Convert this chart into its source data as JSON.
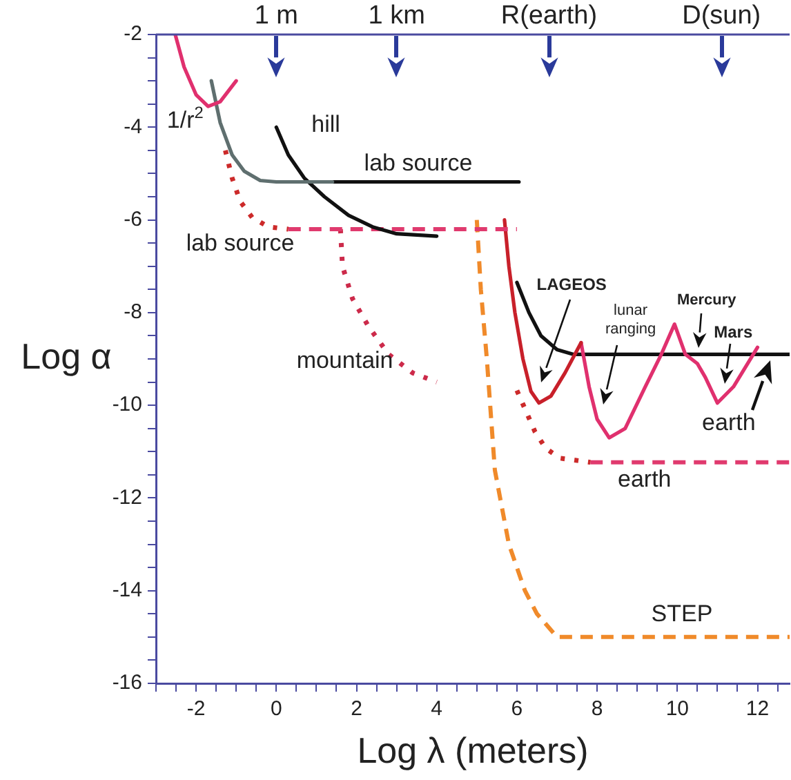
{
  "chart_data": {
    "type": "line",
    "xlabel": "Log λ (meters)",
    "ylabel": "Log α",
    "xlim": [
      -3,
      12.8
    ],
    "ylim": [
      -16,
      -2
    ],
    "xticks": [
      {
        "value": -3,
        "label": null
      },
      {
        "value": -2.5,
        "label": null
      },
      -2,
      {
        "value": -1.5,
        "label": null
      },
      {
        "value": -1,
        "label": null
      },
      {
        "value": -0.5,
        "label": null
      },
      0,
      {
        "value": 0.5,
        "label": null
      },
      {
        "value": 1,
        "label": null
      },
      {
        "value": 1.5,
        "label": null
      },
      2,
      {
        "value": 2.5,
        "label": null
      },
      {
        "value": 3,
        "label": null
      },
      {
        "value": 3.5,
        "label": null
      },
      4,
      {
        "value": 4.5,
        "label": null
      },
      {
        "value": 5,
        "label": null
      },
      {
        "value": 5.5,
        "label": null
      },
      6,
      {
        "value": 6.5,
        "label": null
      },
      {
        "value": 7,
        "label": null
      },
      {
        "value": 7.5,
        "label": null
      },
      8,
      {
        "value": 8.5,
        "label": null
      },
      {
        "value": 9,
        "label": null
      },
      {
        "value": 9.5,
        "label": null
      },
      10,
      {
        "value": 10.5,
        "label": null
      },
      {
        "value": 11,
        "label": null
      },
      {
        "value": 11.5,
        "label": null
      },
      12,
      {
        "value": 12.5,
        "label": null
      }
    ],
    "yticks": [
      -2,
      {
        "value": -2.5,
        "label": null
      },
      {
        "value": -3,
        "label": null
      },
      {
        "value": -3.5,
        "label": null
      },
      -4,
      {
        "value": -4.5,
        "label": null
      },
      {
        "value": -5,
        "label": null
      },
      {
        "value": -5.5,
        "label": null
      },
      -6,
      {
        "value": -6.5,
        "label": null
      },
      {
        "value": -7,
        "label": null
      },
      {
        "value": -7.5,
        "label": null
      },
      -8,
      {
        "value": -8.5,
        "label": null
      },
      {
        "value": -9,
        "label": null
      },
      {
        "value": -9.5,
        "label": null
      },
      -10,
      {
        "value": -10.5,
        "label": null
      },
      {
        "value": -11,
        "label": null
      },
      {
        "value": -11.5,
        "label": null
      },
      -12,
      {
        "value": -12.5,
        "label": null
      },
      {
        "value": -13,
        "label": null
      },
      {
        "value": -13.5,
        "label": null
      },
      -14,
      {
        "value": -14.5,
        "label": null
      },
      {
        "value": -15,
        "label": null
      },
      {
        "value": -15.5,
        "label": null
      },
      -16
    ],
    "grid": false,
    "legend": false,
    "marker": "none",
    "ref_lines": [
      {
        "axis": "x",
        "value": 0,
        "label": "1 m",
        "color": "#2a3a9a"
      },
      {
        "axis": "x",
        "value": 3,
        "label": "1 km",
        "color": "#2a3a9a"
      },
      {
        "axis": "x",
        "value": 6.8,
        "label": "R(earth)",
        "color": "#2a3a9a"
      },
      {
        "axis": "x",
        "value": 11.1,
        "label": "D(sun)",
        "color": "#2a3a9a"
      }
    ],
    "series": [
      {
        "color": "#e0306e",
        "line_style": "solid",
        "x": [
          -2.52,
          -2.3,
          -2.0,
          -1.7,
          -1.4,
          -1.0
        ],
        "values": [
          -2,
          -2.7,
          -3.3,
          -3.55,
          -3.45,
          -3.0
        ]
      },
      {
        "color": "#5f6f6f",
        "line_style": "solid",
        "x": [
          -1.62,
          -1.4,
          -1.1,
          -0.8,
          -0.4,
          0,
          1.4
        ],
        "values": [
          -3.0,
          -3.9,
          -4.6,
          -4.95,
          -5.15,
          -5.18,
          -5.18
        ]
      },
      {
        "color": "#111111",
        "line_style": "solid",
        "x": [
          1.4,
          6.05
        ],
        "values": [
          -5.18,
          -5.18
        ]
      },
      {
        "color": "#111111",
        "line_style": "solid",
        "x": [
          0,
          0.3,
          0.7,
          1.2,
          1.8,
          2.4,
          3,
          4
        ],
        "values": [
          -4,
          -4.6,
          -5.1,
          -5.5,
          -5.9,
          -6.15,
          -6.3,
          -6.35
        ]
      },
      {
        "color": "#cc2a2a",
        "line_style": "dotted",
        "x": [
          -1.27,
          -1.1,
          -0.9,
          -0.6,
          -0.2,
          0.3
        ],
        "values": [
          -4.5,
          -5.1,
          -5.6,
          -5.95,
          -6.15,
          -6.2
        ]
      },
      {
        "color": "#e03a6e",
        "line_style": "dashed",
        "x": [
          0.3,
          6.0
        ],
        "values": [
          -6.2,
          -6.2
        ]
      },
      {
        "color": "#cc2a4a",
        "line_style": "dotted",
        "x": [
          1.6,
          1.65,
          1.9,
          2.3,
          2.8,
          3.4,
          4.0
        ],
        "values": [
          -6.2,
          -7.0,
          -7.7,
          -8.3,
          -8.9,
          -9.3,
          -9.5
        ]
      },
      {
        "color": "#f08a2a",
        "line_style": "dashed",
        "x": [
          5.0,
          5.1,
          5.25,
          5.45,
          5.8,
          6.2,
          6.5,
          7.0,
          12.8
        ],
        "values": [
          -6.0,
          -7.5,
          -9,
          -11.4,
          -13,
          -14,
          -14.5,
          -15,
          -15
        ]
      },
      {
        "color": "#c8202a",
        "line_style": "solid",
        "x": [
          5.69,
          5.8,
          5.95,
          6.15,
          6.35,
          6.55,
          6.85,
          7.2,
          7.6
        ],
        "values": [
          -6.0,
          -7.0,
          -8.0,
          -9.0,
          -9.7,
          -9.95,
          -9.8,
          -9.3,
          -8.65
        ]
      },
      {
        "color": "#e0306e",
        "line_style": "solid",
        "x": [
          7.6,
          7.8,
          8.0,
          8.3,
          8.7,
          9.2,
          9.6,
          9.93,
          10.2,
          10.5,
          10.7,
          11.0,
          11.4,
          12.0
        ],
        "values": [
          -8.65,
          -9.6,
          -10.3,
          -10.7,
          -10.5,
          -9.6,
          -8.9,
          -8.25,
          -8.9,
          -9.1,
          -9.4,
          -9.95,
          -9.6,
          -8.75
        ]
      },
      {
        "color": "#111111",
        "line_style": "solid",
        "x": [
          6.0,
          6.3,
          6.6,
          7.0,
          7.4,
          12.8
        ],
        "values": [
          -7.35,
          -8.0,
          -8.5,
          -8.8,
          -8.9,
          -8.9
        ]
      },
      {
        "color": "#cc2a2a",
        "line_style": "dotted",
        "x": [
          6.0,
          6.45,
          6.72,
          7.07,
          7.83
        ],
        "values": [
          -9.68,
          -10.57,
          -10.93,
          -11.14,
          -11.23
        ]
      },
      {
        "color": "#e03a6e",
        "line_style": "dashed",
        "x": [
          7.83,
          12.8
        ],
        "values": [
          -11.23,
          -11.23
        ]
      }
    ],
    "annotations": [
      "1/r$^{2}$",
      "hill",
      "lab source",
      "lab source",
      "mountain",
      "LAGEOS",
      "lunar\nranging",
      "Mercury",
      "Mars",
      "earth",
      "earth",
      "STEP"
    ]
  }
}
